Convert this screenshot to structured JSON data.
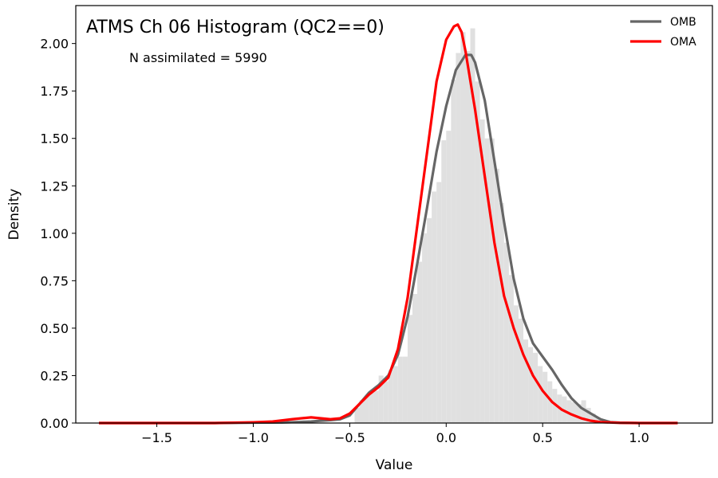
{
  "chart_data": {
    "type": "line",
    "title": "ATMS Ch 06 Histogram (QC2==0)",
    "annotation": "N assimilated = 5990",
    "xlabel": "Value",
    "ylabel": "Density",
    "xlim": [
      -1.92,
      1.38
    ],
    "ylim": [
      0,
      2.2
    ],
    "xticks": [
      -1.5,
      -1.0,
      -0.5,
      0.0,
      0.5,
      1.0
    ],
    "xtick_labels": [
      "−1.5",
      "−1.0",
      "−0.5",
      "0.0",
      "0.5",
      "1.0"
    ],
    "yticks": [
      0.0,
      0.25,
      0.5,
      0.75,
      1.0,
      1.25,
      1.5,
      1.75,
      2.0
    ],
    "ytick_labels": [
      "0.00",
      "0.25",
      "0.50",
      "0.75",
      "1.00",
      "1.25",
      "1.50",
      "1.75",
      "2.00"
    ],
    "grid": false,
    "legend_position": "top-right",
    "histogram": {
      "color": "#e0e0e0",
      "bin_width": 0.025,
      "bins": [
        [
          -0.475,
          0.08
        ],
        [
          -0.45,
          0.12
        ],
        [
          -0.425,
          0.14
        ],
        [
          -0.4,
          0.16
        ],
        [
          -0.375,
          0.17
        ],
        [
          -0.35,
          0.25
        ],
        [
          -0.325,
          0.22
        ],
        [
          -0.3,
          0.28
        ],
        [
          -0.275,
          0.3
        ],
        [
          -0.25,
          0.35
        ],
        [
          -0.225,
          0.35
        ],
        [
          -0.2,
          0.57
        ],
        [
          -0.175,
          0.68
        ],
        [
          -0.15,
          0.85
        ],
        [
          -0.125,
          1.0
        ],
        [
          -0.1,
          1.08
        ],
        [
          -0.075,
          1.22
        ],
        [
          -0.05,
          1.27
        ],
        [
          -0.025,
          1.49
        ],
        [
          0.0,
          1.54
        ],
        [
          0.025,
          1.81
        ],
        [
          0.05,
          1.95
        ],
        [
          0.075,
          2.06
        ],
        [
          0.1,
          1.96
        ],
        [
          0.125,
          2.08
        ],
        [
          0.15,
          1.8
        ],
        [
          0.175,
          1.6
        ],
        [
          0.2,
          1.5
        ],
        [
          0.225,
          1.5
        ],
        [
          0.25,
          1.34
        ],
        [
          0.275,
          1.16
        ],
        [
          0.3,
          0.95
        ],
        [
          0.325,
          0.78
        ],
        [
          0.35,
          0.62
        ],
        [
          0.375,
          0.55
        ],
        [
          0.4,
          0.44
        ],
        [
          0.425,
          0.4
        ],
        [
          0.45,
          0.37
        ],
        [
          0.475,
          0.3
        ],
        [
          0.5,
          0.27
        ],
        [
          0.525,
          0.22
        ],
        [
          0.55,
          0.18
        ],
        [
          0.575,
          0.15
        ],
        [
          0.6,
          0.14
        ],
        [
          0.625,
          0.12
        ],
        [
          0.65,
          0.11
        ],
        [
          0.675,
          0.1
        ],
        [
          0.7,
          0.12
        ],
        [
          0.725,
          0.08
        ],
        [
          0.75,
          0.05
        ],
        [
          0.775,
          0.03
        ],
        [
          0.8,
          0.02
        ]
      ]
    },
    "series": [
      {
        "name": "OMB",
        "color": "#666666",
        "points": [
          [
            -1.8,
            0.0
          ],
          [
            -1.5,
            0.0
          ],
          [
            -1.2,
            0.0
          ],
          [
            -1.0,
            0.002
          ],
          [
            -0.85,
            0.003
          ],
          [
            -0.75,
            0.006
          ],
          [
            -0.7,
            0.008
          ],
          [
            -0.65,
            0.012
          ],
          [
            -0.6,
            0.015
          ],
          [
            -0.55,
            0.02
          ],
          [
            -0.5,
            0.04
          ],
          [
            -0.45,
            0.1
          ],
          [
            -0.4,
            0.16
          ],
          [
            -0.35,
            0.2
          ],
          [
            -0.3,
            0.25
          ],
          [
            -0.25,
            0.36
          ],
          [
            -0.2,
            0.56
          ],
          [
            -0.15,
            0.84
          ],
          [
            -0.1,
            1.13
          ],
          [
            -0.05,
            1.43
          ],
          [
            0.0,
            1.67
          ],
          [
            0.05,
            1.86
          ],
          [
            0.1,
            1.94
          ],
          [
            0.13,
            1.94
          ],
          [
            0.15,
            1.9
          ],
          [
            0.2,
            1.7
          ],
          [
            0.25,
            1.38
          ],
          [
            0.3,
            1.06
          ],
          [
            0.35,
            0.76
          ],
          [
            0.4,
            0.55
          ],
          [
            0.45,
            0.42
          ],
          [
            0.5,
            0.35
          ],
          [
            0.55,
            0.28
          ],
          [
            0.6,
            0.2
          ],
          [
            0.65,
            0.13
          ],
          [
            0.7,
            0.08
          ],
          [
            0.75,
            0.05
          ],
          [
            0.8,
            0.02
          ],
          [
            0.85,
            0.005
          ],
          [
            0.9,
            0.002
          ],
          [
            1.0,
            0.0
          ],
          [
            1.2,
            0.0
          ]
        ]
      },
      {
        "name": "OMA",
        "color": "#ff0000",
        "points": [
          [
            -1.8,
            0.0
          ],
          [
            -1.5,
            0.0
          ],
          [
            -1.2,
            0.0
          ],
          [
            -1.0,
            0.004
          ],
          [
            -0.9,
            0.008
          ],
          [
            -0.8,
            0.02
          ],
          [
            -0.7,
            0.03
          ],
          [
            -0.6,
            0.02
          ],
          [
            -0.55,
            0.025
          ],
          [
            -0.5,
            0.05
          ],
          [
            -0.45,
            0.1
          ],
          [
            -0.4,
            0.15
          ],
          [
            -0.35,
            0.19
          ],
          [
            -0.3,
            0.24
          ],
          [
            -0.25,
            0.39
          ],
          [
            -0.2,
            0.66
          ],
          [
            -0.15,
            1.04
          ],
          [
            -0.1,
            1.42
          ],
          [
            -0.05,
            1.8
          ],
          [
            0.0,
            2.02
          ],
          [
            0.04,
            2.09
          ],
          [
            0.06,
            2.1
          ],
          [
            0.08,
            2.06
          ],
          [
            0.1,
            1.96
          ],
          [
            0.15,
            1.65
          ],
          [
            0.2,
            1.3
          ],
          [
            0.25,
            0.95
          ],
          [
            0.3,
            0.67
          ],
          [
            0.35,
            0.5
          ],
          [
            0.4,
            0.36
          ],
          [
            0.45,
            0.25
          ],
          [
            0.5,
            0.17
          ],
          [
            0.55,
            0.11
          ],
          [
            0.6,
            0.07
          ],
          [
            0.65,
            0.045
          ],
          [
            0.7,
            0.025
          ],
          [
            0.75,
            0.012
          ],
          [
            0.8,
            0.005
          ],
          [
            0.9,
            0.001
          ],
          [
            1.0,
            0.0
          ],
          [
            1.2,
            0.0
          ]
        ]
      }
    ]
  }
}
